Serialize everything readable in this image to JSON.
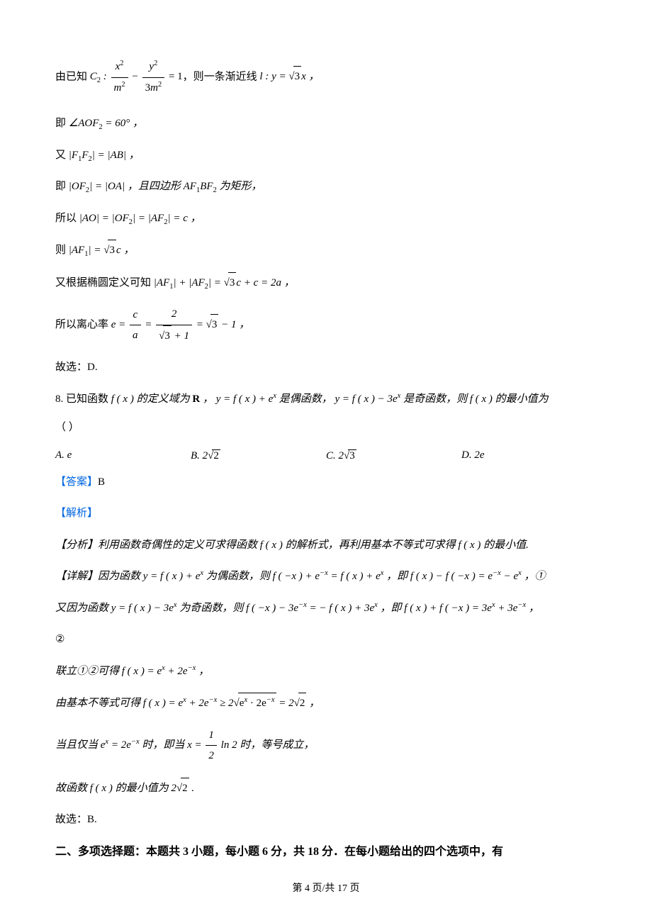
{
  "line1_pre": "由已知",
  "line1_formula": "C",
  "line1_mid": "，则一条渐近线",
  "line1_l": "l : y = ",
  "line1_sqrt3x": "3",
  "line1_x": "x ，",
  "line2_pre": "即",
  "line2_ang": "∠AOF",
  "line2_eq": " = 60° ，",
  "line3_pre": "又",
  "line3_l": "|F",
  "line3_m": "| = |AB| ，",
  "line4_pre": "即",
  "line4_a": "|OF",
  "line4_b": "| = |OA| ，且四边形 AF",
  "line4_c": "BF",
  "line4_d": " 为矩形，",
  "line5_pre": "所以",
  "line5_a": "|AO| = |OF",
  "line5_b": "| = |AF",
  "line5_c": "| = c ，",
  "line6_pre": "则",
  "line6_a": "|AF",
  "line6_b": "| = ",
  "line6_sqrt": "3",
  "line6_c": "c ，",
  "line7_pre": "又根据椭圆定义可知",
  "line7_a": "|AF",
  "line7_b": "| + |AF",
  "line7_c": "| = ",
  "line7_sqrt": "3",
  "line7_d": "c + c = 2a ，",
  "line8_pre": "所以离心率 ",
  "line8_e": "e = ",
  "line8_frac1n": "c",
  "line8_frac1d": "a",
  "line8_eq": " = ",
  "line8_frac2n": "2",
  "line8_frac2dpre": "√3 + 1",
  "line8_eq2": " = ",
  "line8_sqrt": "3",
  "line8_tail": " − 1 ，",
  "line9": "故选：D.",
  "q8_num": "8. 已知函数 ",
  "q8_a": "f ( x ) 的定义域为 ",
  "q8_R": "R",
  "q8_b": " ，  y = f ( x ) + e",
  "q8_c": " 是偶函数，  y = f ( x ) − 3e",
  "q8_d": " 是奇函数，则 f ( x ) 的最小值为",
  "q8_paren": "（        ）",
  "optA": "A.   e",
  "optB_pre": "B.   2",
  "optB_sqrt": "2",
  "optC_pre": "C.   2",
  "optC_sqrt": "3",
  "optD": "D.   2e",
  "answer_label": "【答案】",
  "answer_val": "B",
  "analysis_label": "【解析】",
  "fx_label": "【分析】利用函数奇偶性的定义可求得函数 f ( x ) 的解析式，再利用基本不等式可求得 f ( x ) 的最小值.",
  "detail_label": "【详解】因为函数 y = f ( x ) + e",
  "detail_b": " 为偶函数，则 f ( −x ) + e",
  "detail_c": " = f ( x ) + e",
  "detail_d": " ，即 f ( x ) − f ( −x ) = e",
  "detail_e": " − e",
  "detail_f": " ，①",
  "detail2_a": "又因为函数 y = f ( x ) − 3e",
  "detail2_b": " 为奇函数，则 f ( −x ) − 3e",
  "detail2_c": " = − f ( x ) + 3e",
  "detail2_d": " ，即 f ( x ) + f ( −x ) = 3e",
  "detail2_e": " + 3e",
  "detail2_f": " ，",
  "circle2": "②",
  "lianli_a": "联立①②可得 f ( x ) = e",
  "lianli_b": " + 2e",
  "lianli_c": " ，",
  "ineq_a": "由基本不等式可得 f ( x ) = e",
  "ineq_b": " + 2e",
  "ineq_c": " ≥ 2",
  "ineq_under": "e<sup style=\"font-style:italic\">x</sup> · 2e<sup style=\"font-style:italic\">−x</sup>",
  "ineq_d": " = 2",
  "ineq_sqrt": "2",
  "ineq_e": " ，",
  "dang_a": "当且仅当 e",
  "dang_b": " = 2e",
  "dang_c": " 时，即当 x = ",
  "dang_frac_n": "1",
  "dang_frac_d": "2",
  "dang_d": " ln 2 时，等号成立，",
  "gu_a": "故函数 f ( x ) 的最小值为 2",
  "gu_sqrt": "2",
  "gu_b": " .",
  "gu2": "故选：B.",
  "section2": "二、多项选择题：本题共 3 小题，每小题 6 分，共 18 分．在每小题给出的四个选项中，有",
  "footer_a": "第 ",
  "footer_b": "4",
  "footer_c": " 页/共 ",
  "footer_d": "17",
  "footer_e": " 页"
}
